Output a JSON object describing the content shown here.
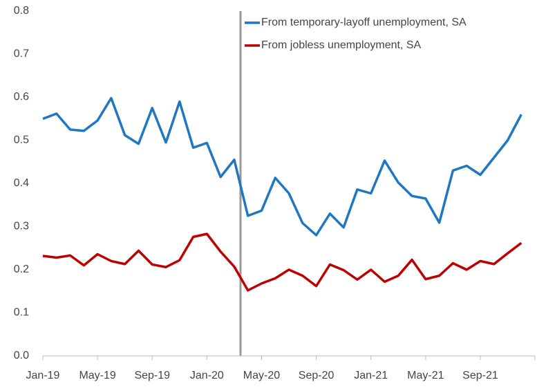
{
  "chart_data": {
    "type": "line",
    "categories": [
      "Jan-19",
      null,
      null,
      null,
      "May-19",
      null,
      null,
      null,
      "Sep-19",
      null,
      null,
      null,
      "Jan-20",
      null,
      null,
      null,
      "May-20",
      null,
      null,
      null,
      "Sep-20",
      null,
      null,
      null,
      "Jan-21",
      null,
      null,
      null,
      "May-21",
      null,
      null,
      null,
      "Sep-21",
      null,
      null,
      null
    ],
    "series": [
      {
        "name": "From temporary-layoff unemployment, SA",
        "color": "#1f77c4",
        "values": [
          0.55,
          0.562,
          0.525,
          0.522,
          0.546,
          0.598,
          0.512,
          0.492,
          0.575,
          0.495,
          0.59,
          0.483,
          0.494,
          0.415,
          0.455,
          0.325,
          0.337,
          0.413,
          0.377,
          0.308,
          0.28,
          0.33,
          0.298,
          0.386,
          0.377,
          0.453,
          0.402,
          0.371,
          0.365,
          0.309,
          0.43,
          0.441,
          0.42,
          0.46,
          0.5,
          0.56
        ]
      },
      {
        "name": "From jobless unemployment, SA",
        "color": "#c00000",
        "values": [
          0.232,
          0.228,
          0.233,
          0.21,
          0.236,
          0.22,
          0.213,
          0.244,
          0.212,
          0.206,
          0.222,
          0.276,
          0.283,
          0.242,
          0.207,
          0.152,
          0.168,
          0.18,
          0.2,
          0.186,
          0.162,
          0.212,
          0.199,
          0.177,
          0.2,
          0.172,
          0.186,
          0.223,
          0.178,
          0.186,
          0.215,
          0.2,
          0.22,
          0.213,
          0.238,
          0.262
        ]
      }
    ],
    "ylim": [
      0,
      0.8
    ],
    "yticks": [
      {
        "value": 0,
        "label": "0.0"
      },
      0.1,
      0.2,
      0.3,
      0.4,
      0.5,
      0.6,
      0.7,
      0.8
    ],
    "grid": false,
    "legend": "top-right"
  }
}
